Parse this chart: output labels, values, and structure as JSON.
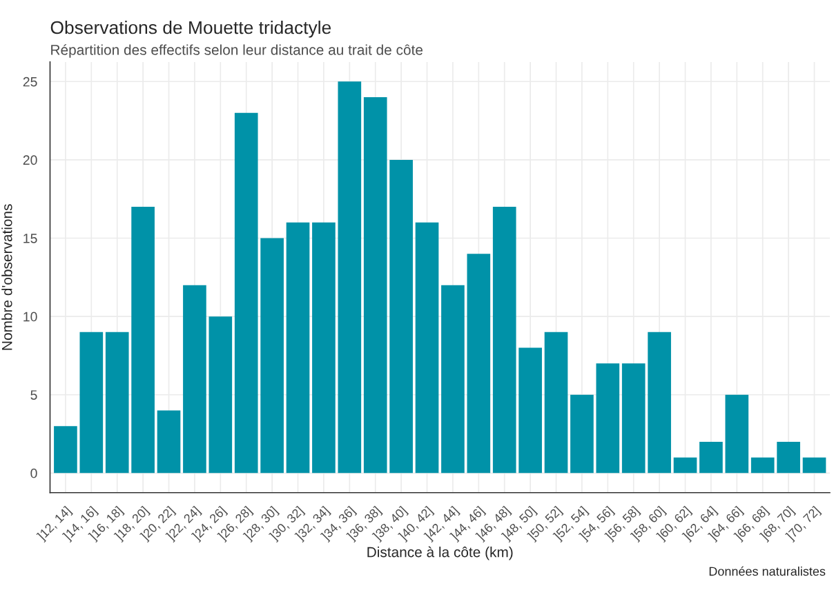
{
  "chart_data": {
    "type": "bar",
    "title": "Observations de Mouette tridactyle",
    "subtitle": "Répartition des effectifs selon leur distance au trait de côte",
    "xlabel": "Distance à la côte (km)",
    "ylabel": "Nombre d'observations",
    "annotations": [
      "Données naturalistes"
    ],
    "categories": [
      "]12, 14]",
      "]14, 16]",
      "]16, 18]",
      "]18, 20]",
      "]20, 22]",
      "]22, 24]",
      "]24, 26]",
      "]26, 28]",
      "]28, 30]",
      "]30, 32]",
      "]32, 34]",
      "]34, 36]",
      "]36, 38]",
      "]38, 40]",
      "]40, 42]",
      "]42, 44]",
      "]44, 46]",
      "]46, 48]",
      "]48, 50]",
      "]50, 52]",
      "]52, 54]",
      "]54, 56]",
      "]56, 58]",
      "]58, 60]",
      "]60, 62]",
      "]62, 64]",
      "]64, 66]",
      "]66, 68]",
      "]68, 70]",
      "]70, 72]"
    ],
    "values": [
      3,
      9,
      9,
      17,
      4,
      12,
      10,
      23,
      15,
      16,
      16,
      25,
      24,
      20,
      16,
      12,
      14,
      17,
      8,
      9,
      5,
      7,
      7,
      9,
      1,
      2,
      5,
      1,
      2,
      1
    ],
    "color": "#0092a8",
    "ylim": [
      -1.25,
      26.25
    ],
    "yticks": [
      0,
      5,
      10,
      15,
      20,
      25
    ],
    "grid": true
  }
}
